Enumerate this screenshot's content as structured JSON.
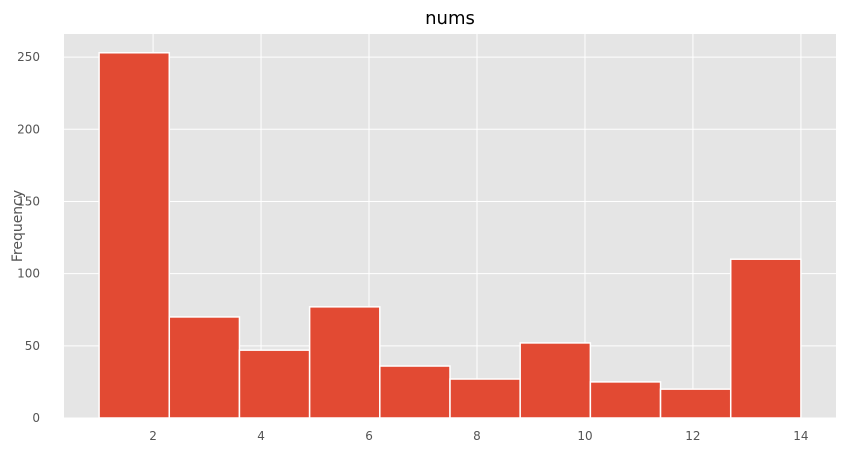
{
  "chart_data": {
    "type": "bar",
    "title": "nums",
    "xlabel": "",
    "ylabel": "Frequency",
    "bin_edges": [
      1.0,
      2.3,
      3.6,
      4.9,
      6.2,
      7.5,
      8.8,
      10.1,
      11.4,
      12.7,
      14.0
    ],
    "values": [
      253,
      70,
      47,
      77,
      36,
      27,
      52,
      25,
      20,
      110
    ],
    "xlim": [
      0.35,
      14.65
    ],
    "ylim": [
      0,
      266
    ],
    "xticks": [
      2,
      4,
      6,
      8,
      10,
      12,
      14
    ],
    "yticks": [
      0,
      50,
      100,
      150,
      200,
      250
    ],
    "xtick_labels": [
      "2",
      "4",
      "6",
      "8",
      "10",
      "12",
      "14"
    ],
    "ytick_labels": [
      "0",
      "50",
      "100",
      "150",
      "200",
      "250"
    ],
    "grid": true,
    "colors": {
      "bar": "#E24A33",
      "bar_edge": "#ffffff",
      "plot_background": "#E5E5E5",
      "grid": "#ffffff",
      "text": "#555555",
      "title": "#000000"
    }
  }
}
